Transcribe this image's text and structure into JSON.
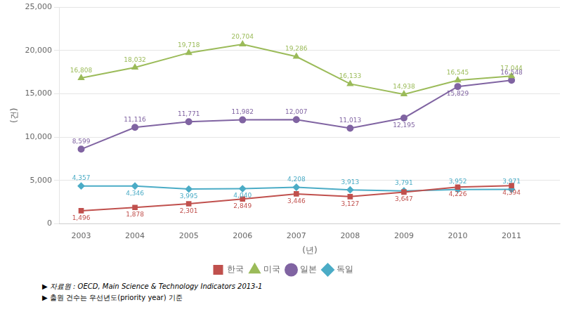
{
  "chart_data": {
    "type": "line",
    "x_label": "(년)",
    "y_label": "(건)",
    "x": [
      2003,
      2004,
      2005,
      2006,
      2007,
      2008,
      2009,
      2010,
      2011
    ],
    "series": [
      {
        "name": "한국",
        "color": "#C0504D",
        "marker": "square",
        "values": [
          1496,
          1878,
          2301,
          2849,
          3446,
          3127,
          3647,
          4226,
          4394
        ],
        "value_labels": [
          "1,496",
          "1,878",
          "2,301",
          "2,849",
          "3,446",
          "3,127",
          "3,647",
          "4,226",
          "4,394"
        ]
      },
      {
        "name": "미국",
        "color": "#9BBB59",
        "marker": "triangle",
        "values": [
          16808,
          18032,
          19718,
          20704,
          19286,
          16133,
          14938,
          16545,
          17044
        ],
        "value_labels": [
          "16,808",
          "18,032",
          "19,718",
          "20,704",
          "19,286",
          "16,133",
          "14,938",
          "16,545",
          "17,044"
        ]
      },
      {
        "name": "일본",
        "color": "#8064A2",
        "marker": "circle",
        "values": [
          8599,
          11116,
          11771,
          11982,
          12007,
          11013,
          12195,
          15829,
          16548
        ],
        "value_labels": [
          "8,599",
          "11,116",
          "11,771",
          "11,982",
          "12,007",
          "11,013",
          "12,195",
          "15,829",
          "16,548"
        ]
      },
      {
        "name": "독일",
        "color": "#4BACC6",
        "marker": "diamond",
        "values": [
          4357,
          4346,
          3995,
          4040,
          4208,
          3913,
          3791,
          3952,
          3971
        ],
        "value_labels": [
          "4,357",
          "4,346",
          "3,995",
          "4,040",
          "4,208",
          "3,913",
          "3,791",
          "3,952",
          "3,971"
        ]
      }
    ],
    "xlim": [
      2002.6,
      2011.9
    ],
    "xticks": [
      2003,
      2004,
      2005,
      2006,
      2007,
      2008,
      2009,
      2010,
      2011
    ],
    "ylim": [
      0,
      25000
    ],
    "yticks": [
      0,
      {
        "value": 5000,
        "label": "5,000"
      },
      {
        "value": 10000,
        "label": "10,000"
      },
      {
        "value": 15000,
        "label": "15,000"
      },
      {
        "value": 20000,
        "label": "20,000"
      },
      {
        "value": 25000,
        "label": "25,000"
      }
    ],
    "grid": true,
    "legend": "bottom",
    "data_labels": true,
    "annotations": [
      "▶ 자료원 : OECD, Main Science & Technology Indicators 2013-1",
      "▶ 출원 건수는 우선년도(priority year) 기준"
    ]
  }
}
